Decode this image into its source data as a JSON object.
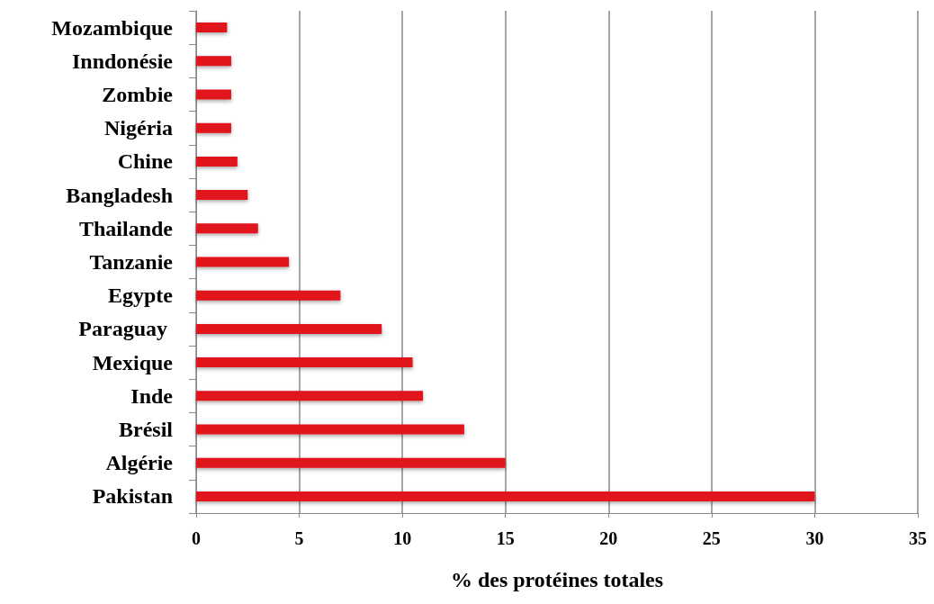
{
  "chart_data": {
    "type": "bar",
    "orientation": "horizontal",
    "xlabel": "% des protéines totales",
    "categories": [
      "Mozambique",
      "Inndonésie",
      "Zombie",
      "Nigéria",
      "Chine",
      "Bangladesh",
      "Thailande",
      "Tanzanie",
      "Egypte",
      "Paraguay ",
      "Mexique",
      "Inde",
      "Brésil",
      "Algérie",
      "Pakistan"
    ],
    "values": [
      1.5,
      1.7,
      1.7,
      1.7,
      2,
      2.5,
      3,
      4.5,
      7,
      9,
      10.5,
      11,
      13,
      15,
      30
    ],
    "color": "#e0141c",
    "xlim": [
      0,
      35
    ],
    "xticks": [
      0,
      5,
      10,
      15,
      20,
      25,
      30,
      35
    ],
    "grid": "x"
  }
}
